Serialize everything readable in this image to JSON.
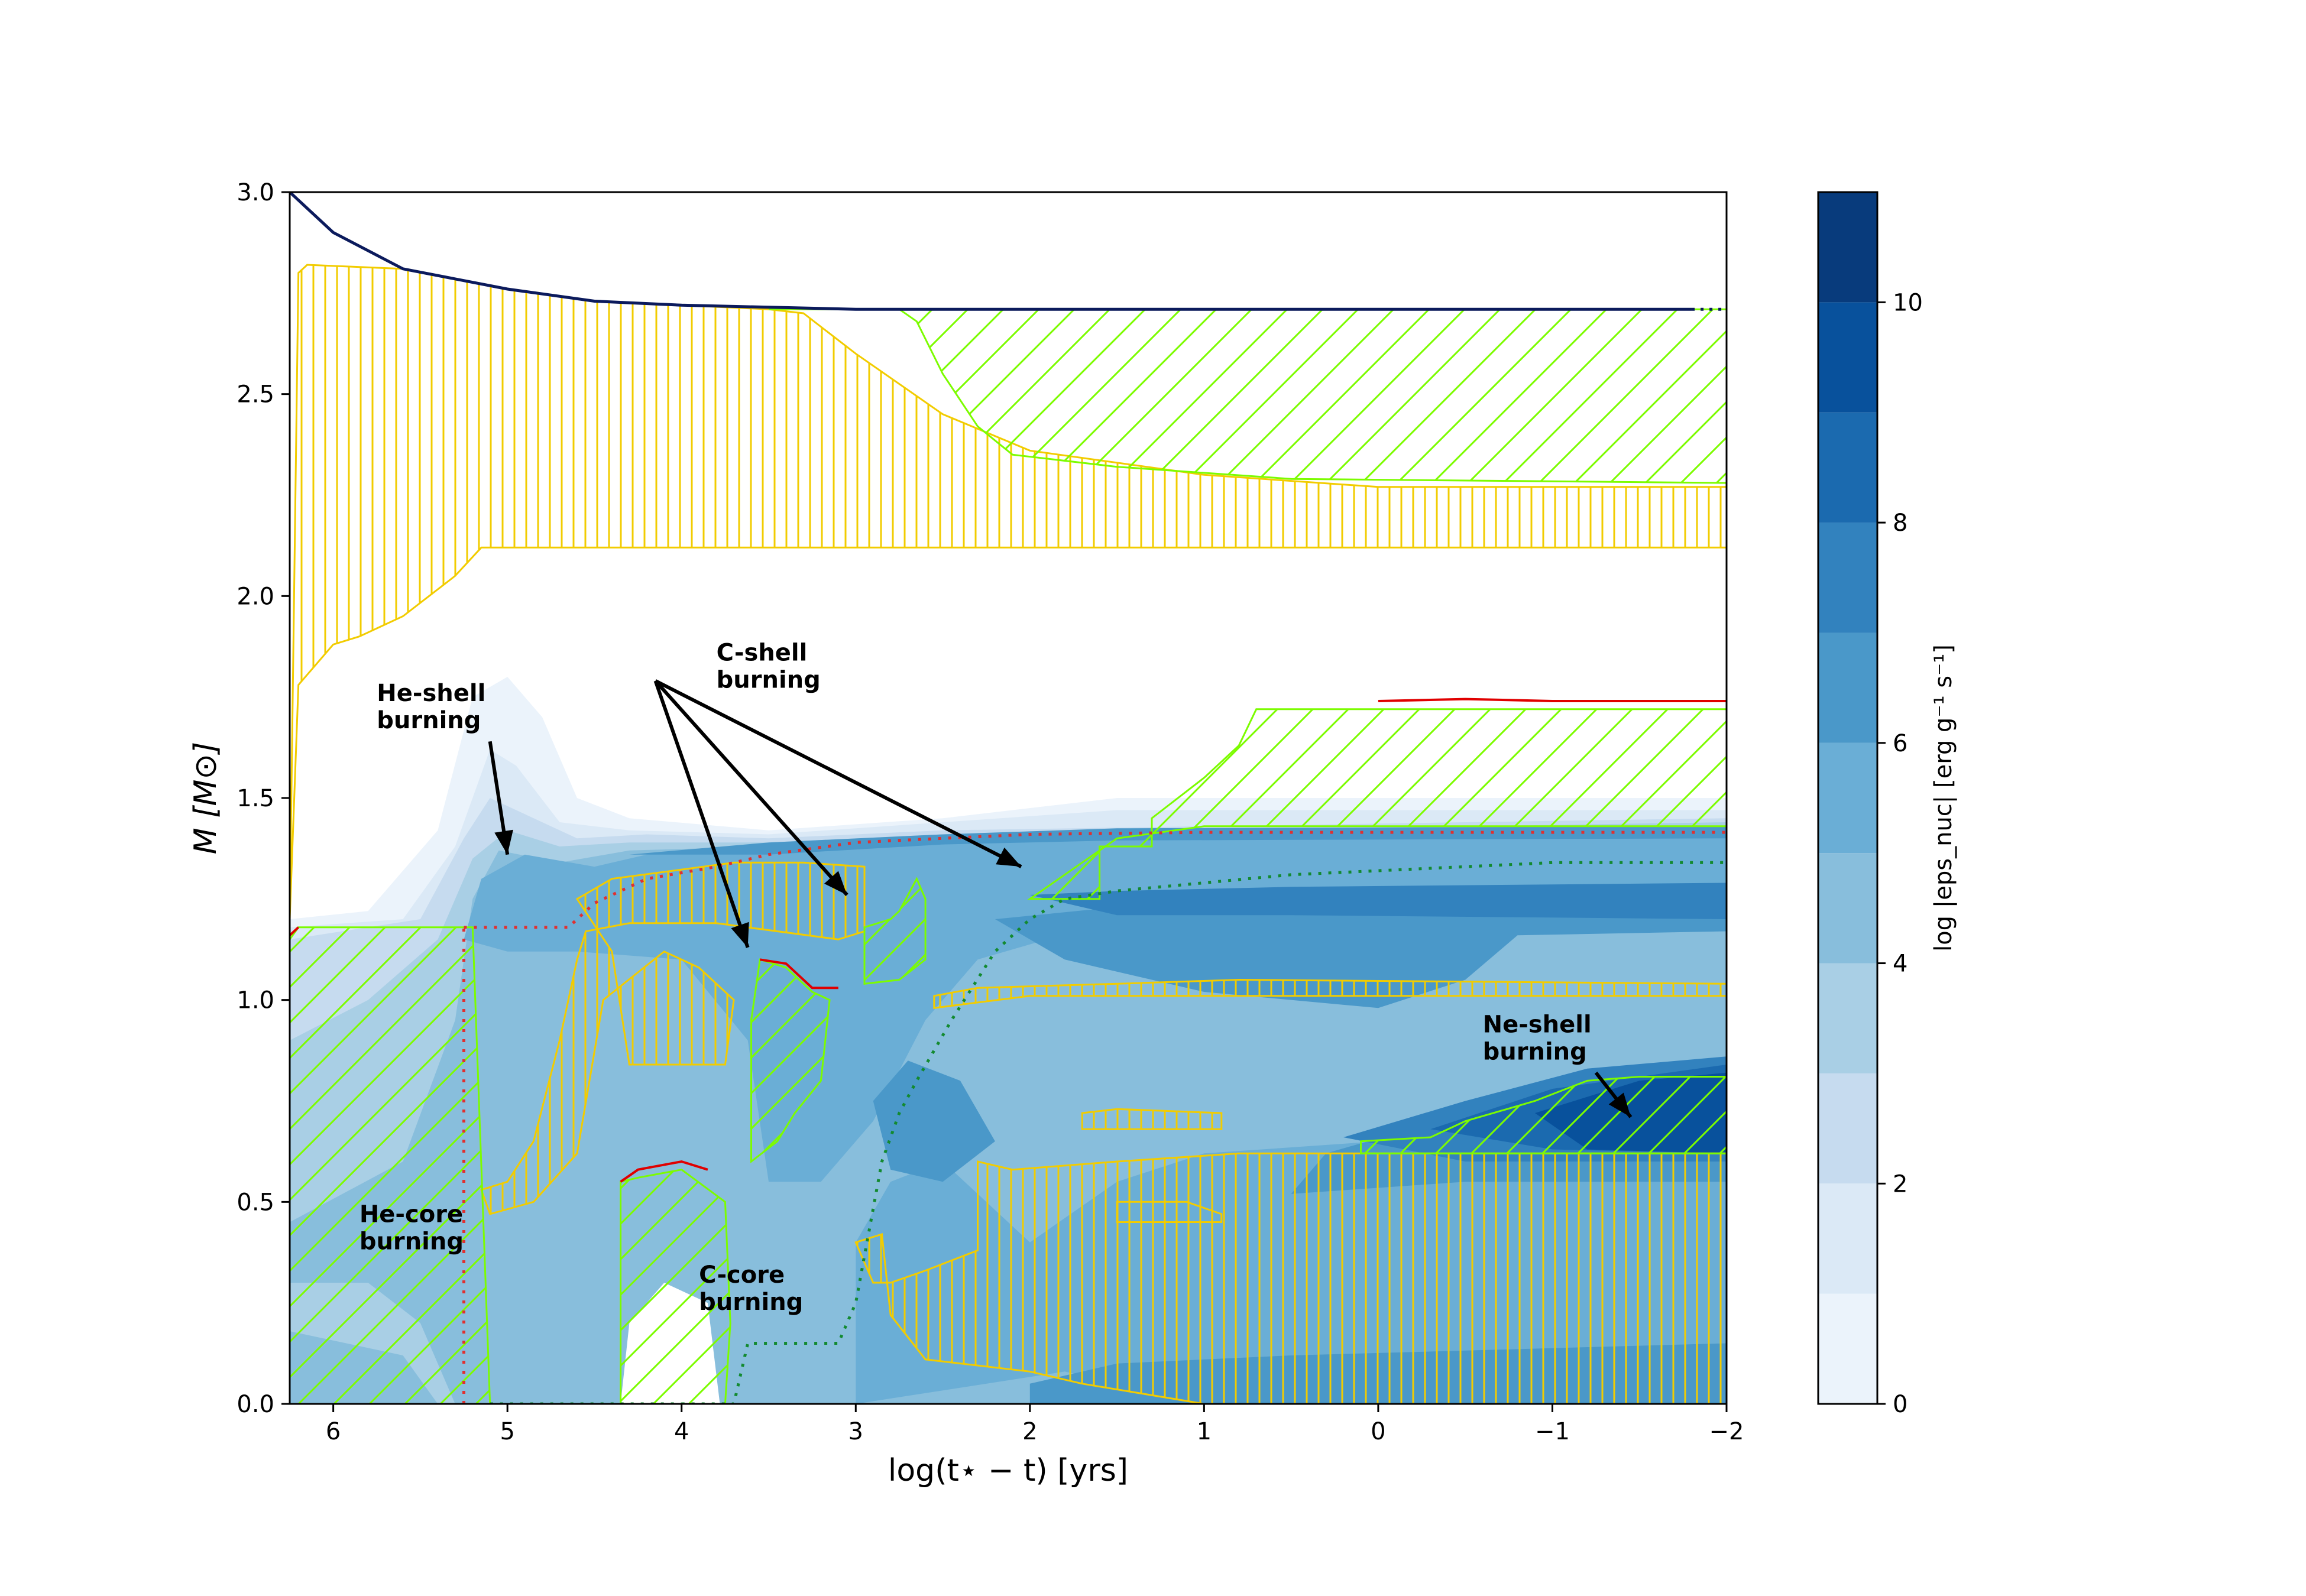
{
  "chart_data": {
    "type": "heatmap",
    "title": "",
    "xlabel": "log(t⋆ − t) [yrs]",
    "ylabel": "M  [M⊙]",
    "xlim": [
      6.25,
      -2
    ],
    "ylim": [
      0,
      3
    ],
    "x_ticks": [
      6,
      5,
      4,
      3,
      2,
      1,
      0,
      -1,
      -2
    ],
    "x_tick_labels": [
      "6",
      "5",
      "4",
      "3",
      "2",
      "1",
      "0",
      "−1",
      "−2"
    ],
    "y_ticks": [
      0,
      0.5,
      1,
      1.5,
      2,
      2.5,
      3
    ],
    "y_tick_labels": [
      "0.0",
      "0.5",
      "1.0",
      "1.5",
      "2.0",
      "2.5",
      "3.0"
    ],
    "grid": false,
    "colorbar": {
      "label": "log |eps_nuc| [erg g⁻¹ s⁻¹]",
      "range": [
        0,
        11
      ],
      "levels": [
        0,
        1,
        2,
        3,
        4,
        5,
        6,
        7,
        8,
        9,
        10,
        11
      ],
      "ticks": [
        0,
        2,
        4,
        6,
        8,
        10
      ],
      "tick_labels": [
        "0",
        "2",
        "4",
        "6",
        "8",
        "10"
      ],
      "colors": [
        "#ebf3fb",
        "#dbe9f6",
        "#c6dbef",
        "#a9cfe5",
        "#88bedc",
        "#6aaed6",
        "#4a98c9",
        "#3282be",
        "#1b6aaf",
        "#08519c",
        "#083b7c"
      ]
    },
    "series": [
      {
        "values": [
          [
            6.25,
            3.0
          ],
          [
            6.0,
            2.9
          ],
          [
            5.6,
            2.81
          ],
          [
            5.0,
            2.76
          ],
          [
            4.5,
            2.73
          ],
          [
            4.0,
            2.72
          ],
          [
            3.0,
            2.71
          ],
          [
            2.0,
            2.71
          ],
          [
            1.0,
            2.71
          ],
          [
            0.0,
            2.71
          ],
          [
            -1.0,
            2.71
          ],
          [
            -1.8,
            2.71
          ],
          [
            -2.0,
            2.71
          ]
        ]
      },
      {
        "values": [
          [
            4.65,
            1.18
          ],
          [
            4.5,
            1.24
          ],
          [
            4.2,
            1.3
          ],
          [
            3.8,
            1.33
          ],
          [
            3.5,
            1.36
          ],
          [
            3.0,
            1.39
          ],
          [
            2.5,
            1.4
          ],
          [
            2.0,
            1.41
          ],
          [
            1.0,
            1.415
          ],
          [
            -2.0,
            1.415
          ]
        ]
      },
      {
        "values": [
          [
            4.0,
            0.0
          ],
          [
            3.7,
            0.0
          ],
          [
            3.62,
            0.15
          ],
          [
            3.1,
            0.15
          ],
          [
            3.0,
            0.25
          ],
          [
            2.85,
            0.6
          ],
          [
            2.75,
            0.72
          ],
          [
            2.65,
            0.8
          ],
          [
            2.45,
            0.95
          ],
          [
            2.2,
            1.12
          ],
          [
            2.0,
            1.2
          ],
          [
            1.8,
            1.25
          ],
          [
            1.5,
            1.27
          ],
          [
            1.0,
            1.29
          ],
          [
            0.5,
            1.31
          ],
          [
            0.0,
            1.32
          ],
          [
            -0.5,
            1.33
          ],
          [
            -1.0,
            1.34
          ],
          [
            -2.0,
            1.34
          ]
        ]
      }
    ],
    "regions": [
      {
        "name": "convective",
        "color": "#ffd700",
        "hatch": "vertical"
      },
      {
        "name": "overshoot",
        "color": "#7cfc00",
        "hatch": "diagonal"
      },
      {
        "name": "semiconvective",
        "color": "#e00000"
      }
    ],
    "annotations": [
      {
        "text": "He-shell\nburning",
        "x": 5.75,
        "y": 1.74,
        "arrow_to": [
          5.0,
          1.36
        ]
      },
      {
        "text": "C-shell\nburning",
        "x": 3.8,
        "y": 1.84,
        "arrow_to": [
          [
            3.62,
            1.13
          ],
          [
            3.05,
            1.26
          ],
          [
            2.05,
            1.33
          ]
        ]
      },
      {
        "text": "Ne-shell\nburning",
        "x": -0.6,
        "y": 0.92,
        "arrow_to": [
          -1.45,
          0.71
        ]
      },
      {
        "text": "He-core\nburning",
        "x": 5.85,
        "y": 0.45
      },
      {
        "text": "C-core\nburning",
        "x": 3.9,
        "y": 0.3
      }
    ]
  }
}
